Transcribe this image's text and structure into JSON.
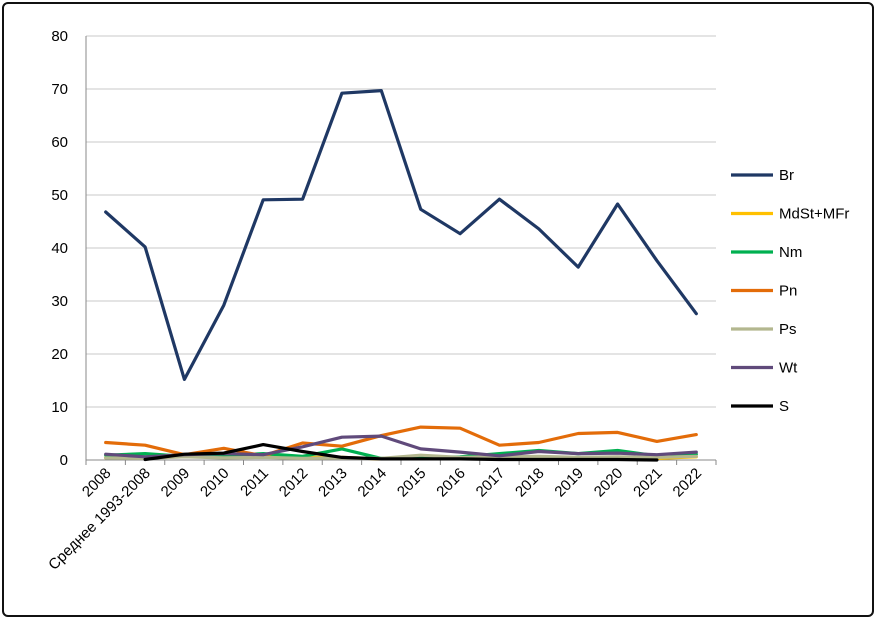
{
  "chart_data": {
    "type": "line",
    "title": "",
    "xlabel": "",
    "ylabel": "",
    "ylim": [
      0,
      80
    ],
    "yticks": [
      0,
      10,
      20,
      30,
      40,
      50,
      60,
      70,
      80
    ],
    "grid": "horizontal",
    "legend_position": "right",
    "categories": [
      "2008",
      "Среднее 1993-2008",
      "2009",
      "2010",
      "2011",
      "2012",
      "2013",
      "2014",
      "2015",
      "2016",
      "2017",
      "2018",
      "2019",
      "2020",
      "2021",
      "2022"
    ],
    "series": [
      {
        "name": "Br",
        "color": "#1f3864",
        "values": [
          46.8,
          40.2,
          15.2,
          29.2,
          49.1,
          49.2,
          69.2,
          69.7,
          47.3,
          42.7,
          49.2,
          43.6,
          36.4,
          48.3,
          37.6,
          27.6
        ]
      },
      {
        "name": "MdSt+MFr",
        "color": "#ffc000",
        "values": [
          0.4,
          0.4,
          0.8,
          0.6,
          0.8,
          0.5,
          0.5,
          0.2,
          0.2,
          0.3,
          0.5,
          0.3,
          0.4,
          0.4,
          0.3,
          0.6
        ]
      },
      {
        "name": "Nm",
        "color": "#00b050",
        "values": [
          0.9,
          1.2,
          0.7,
          0.8,
          1.2,
          0.7,
          2.1,
          0.3,
          0.4,
          0.6,
          1.2,
          1.8,
          1.2,
          1.8,
          0.8,
          1.1
        ]
      },
      {
        "name": "Pn",
        "color": "#e36c09",
        "values": [
          3.3,
          2.8,
          1.0,
          2.2,
          0.8,
          3.2,
          2.6,
          4.6,
          6.2,
          6.0,
          2.8,
          3.3,
          5.0,
          5.2,
          3.5,
          4.8
        ]
      },
      {
        "name": "Ps",
        "color": "#b3b78f",
        "values": [
          0.4,
          0.3,
          0.6,
          0.4,
          0.5,
          0.3,
          0.4,
          0.3,
          0.9,
          0.5,
          0.6,
          0.7,
          0.5,
          0.6,
          0.5,
          0.7
        ]
      },
      {
        "name": "Wt",
        "color": "#604a7b",
        "values": [
          1.1,
          0.6,
          1.0,
          1.2,
          1.0,
          2.5,
          4.3,
          4.5,
          2.1,
          1.5,
          0.8,
          1.6,
          1.2,
          1.3,
          1.0,
          1.5
        ]
      },
      {
        "name": "S",
        "color": "#000000",
        "values": [
          null,
          0.1,
          1.1,
          1.3,
          2.9,
          1.6,
          0.5,
          0.2,
          0.2,
          0.2,
          0.1,
          0.1,
          0.1,
          0.1,
          0.0,
          null
        ]
      }
    ]
  }
}
